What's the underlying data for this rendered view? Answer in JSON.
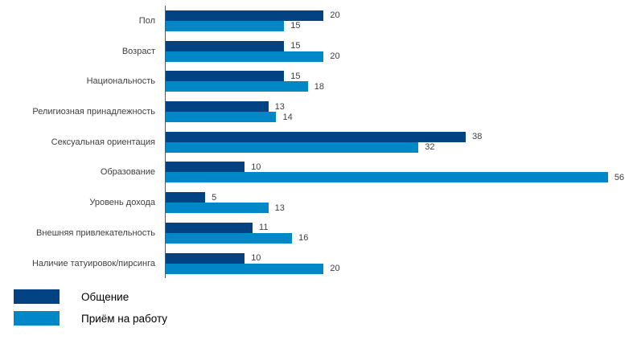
{
  "chart_data": {
    "type": "bar",
    "orientation": "horizontal",
    "title": "",
    "xlabel": "",
    "ylabel": "",
    "xlim": [
      0,
      58
    ],
    "grid": false,
    "legend_position": "bottom-left",
    "value_labels": true,
    "categories": [
      "Пол",
      "Возраст",
      "Национальность",
      "Религиозная принадлежность",
      "Сексуальная ориентация",
      "Образование",
      "Уровень дохода",
      "Внешняя привлекательность",
      "Наличие татуировок/пирсинга"
    ],
    "series": [
      {
        "name": "Общение",
        "color": "#004282",
        "values": [
          20,
          15,
          15,
          13,
          38,
          10,
          5,
          11,
          10
        ]
      },
      {
        "name": "Приём на работу",
        "color": "#0087C8",
        "values": [
          15,
          20,
          18,
          14,
          32,
          56,
          13,
          16,
          20
        ]
      }
    ]
  },
  "colors": {
    "axis_line": "#595959",
    "label_text": "#404040",
    "legend_text": "#000000",
    "background": "#ffffff"
  }
}
